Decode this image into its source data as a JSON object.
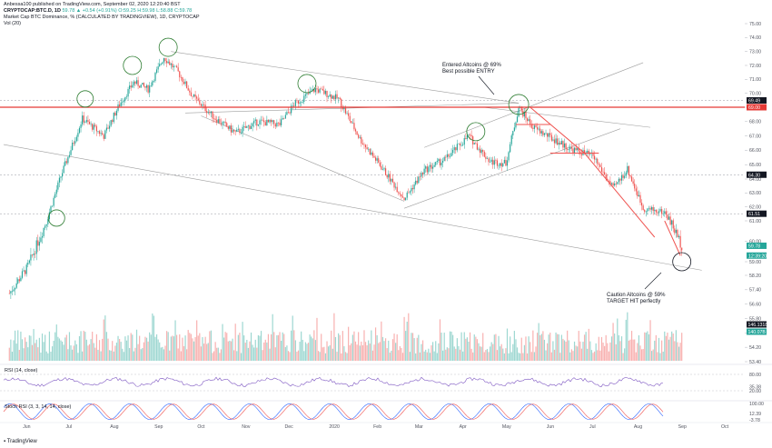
{
  "header": {
    "line1": "Anbessa100 published on TradingView.com, September 02, 2020 12:20:40 BST",
    "symbol": "CRYPTOCAP:BTC.D, 1D",
    "quote": "59.78 ▲ +0.54 (+0.91%) O:59.25 H:59.98 L:58.88 C:59.78",
    "title": "Market Cap BTC Dominance, % (CALCULATED BY TRADINGVIEW), 1D, CRYPTOCAP",
    "volume_label": "Vol (20)"
  },
  "footer": {
    "brand": "TradingView"
  },
  "annotations": {
    "entry_line1": "Entered Altcoins @ 69%",
    "entry_line2": "Best possible ENTRY",
    "target_line1": "Caution Altcoins @ 59%",
    "target_line2": "TARGET HIT perfectly"
  },
  "colors": {
    "up": "#26a69a",
    "down": "#ef5350",
    "horizontal_line": "#e53935",
    "trend": "#9e9e9e",
    "circle": "#2e7d32"
  },
  "chart_data": {
    "type": "candlestick",
    "ylim": [
      53.4,
      75.0
    ],
    "y_ticks": [
      "75.00",
      "74.00",
      "73.00",
      "72.00",
      "71.00",
      "70.00",
      "69.00",
      "68.00",
      "67.00",
      "66.00",
      "65.00",
      "64.00",
      "63.00",
      "62.00",
      "61.00",
      "60.00",
      "59.00",
      "58.20",
      "57.40",
      "56.60",
      "55.80",
      "55.00",
      "54.20",
      "53.40"
    ],
    "x_labels": [
      "Jun",
      "Jul",
      "Aug",
      "Sep",
      "Oct",
      "Nov",
      "Dec",
      "2020",
      "Feb",
      "Mar",
      "Apr",
      "May",
      "Jun",
      "Jul",
      "Aug",
      "Sep",
      "Oct"
    ],
    "price_badges": [
      {
        "label": "69.49",
        "value": 69.49,
        "color": "#131722"
      },
      {
        "label": "69.00",
        "value": 69.0,
        "color": "#e53935"
      },
      {
        "label": "64.30",
        "value": 64.3,
        "color": "#131722"
      },
      {
        "label": "61.51",
        "value": 61.51,
        "color": "#131722"
      },
      {
        "label": "59.78",
        "value": 59.78,
        "color": "#26a69a"
      },
      {
        "label": "12:39:20",
        "value": 59.3,
        "color": "#26a69a"
      }
    ],
    "horizontal_level": 69.0,
    "close_path": [
      [
        "2019-05-20",
        57.2
      ],
      [
        "2019-06-01",
        58.6
      ],
      [
        "2019-06-15",
        61.0
      ],
      [
        "2019-06-25",
        64.2
      ],
      [
        "2019-07-10",
        68.2
      ],
      [
        "2019-07-25",
        67.0
      ],
      [
        "2019-08-05",
        69.2
      ],
      [
        "2019-08-15",
        70.8
      ],
      [
        "2019-08-25",
        70.3
      ],
      [
        "2019-09-05",
        72.6
      ],
      [
        "2019-09-15",
        71.5
      ],
      [
        "2019-09-25",
        69.8
      ],
      [
        "2019-10-10",
        68.3
      ],
      [
        "2019-10-25",
        67.2
      ],
      [
        "2019-11-10",
        68.0
      ],
      [
        "2019-11-25",
        67.8
      ],
      [
        "2019-12-05",
        69.2
      ],
      [
        "2019-12-20",
        70.3
      ],
      [
        "2020-01-05",
        69.6
      ],
      [
        "2020-01-20",
        66.8
      ],
      [
        "2020-02-05",
        64.7
      ],
      [
        "2020-02-20",
        62.6
      ],
      [
        "2020-03-05",
        64.6
      ],
      [
        "2020-03-20",
        65.4
      ],
      [
        "2020-04-05",
        67.0
      ],
      [
        "2020-04-20",
        65.2
      ],
      [
        "2020-05-01",
        65.1
      ],
      [
        "2020-05-10",
        69.0
      ],
      [
        "2020-05-20",
        67.6
      ],
      [
        "2020-06-01",
        66.9
      ],
      [
        "2020-06-15",
        66.1
      ],
      [
        "2020-07-01",
        65.6
      ],
      [
        "2020-07-15",
        63.3
      ],
      [
        "2020-07-25",
        64.7
      ],
      [
        "2020-08-05",
        61.9
      ],
      [
        "2020-08-20",
        61.6
      ],
      [
        "2020-09-01",
        59.78
      ]
    ],
    "volume_series_name": "Vol (20)",
    "volume_badges": [
      {
        "label": "146.1318",
        "color": "#131722"
      },
      {
        "label": "140.07B",
        "color": "#26a69a"
      }
    ],
    "rsi": {
      "label": "RSI (14, close)",
      "ticks": [
        "80.00",
        "35.38",
        "20.00"
      ],
      "ylim": [
        0,
        100
      ],
      "value": 35.38
    },
    "stoch": {
      "label": "Stoch RSI (3, 3, 14, 14, close)",
      "ticks": [
        "100.00",
        "12.39",
        "-3.78"
      ]
    }
  }
}
